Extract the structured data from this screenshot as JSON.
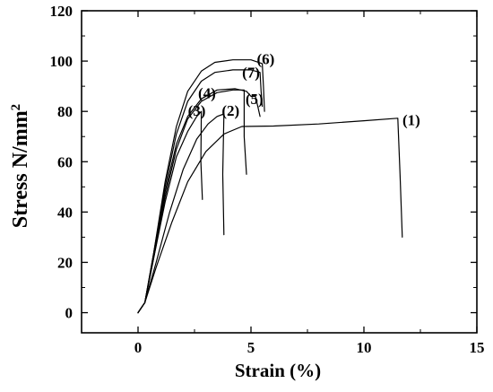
{
  "chart_data": {
    "type": "line",
    "xlabel": "Strain (%)",
    "ylabel_main": "Stress N/mm",
    "ylabel_sup": "2",
    "xlim": [
      -2.5,
      15
    ],
    "ylim": [
      -8,
      120
    ],
    "xticks": [
      0,
      5,
      10,
      15
    ],
    "yticks": [
      0,
      20,
      40,
      60,
      80,
      100,
      120
    ],
    "grid": false,
    "legend": "none",
    "line_color": "#000000",
    "series": [
      {
        "name": "(1)",
        "points": [
          [
            0,
            0
          ],
          [
            0.3,
            4
          ],
          [
            0.8,
            18
          ],
          [
            1.5,
            36
          ],
          [
            2.2,
            52
          ],
          [
            3.0,
            64
          ],
          [
            3.8,
            71
          ],
          [
            4.6,
            74
          ],
          [
            6,
            74.2
          ],
          [
            8,
            75
          ],
          [
            10,
            76.3
          ],
          [
            11.5,
            77.3
          ],
          [
            11.6,
            55
          ],
          [
            11.7,
            30
          ]
        ]
      },
      {
        "name": "(2)",
        "points": [
          [
            0,
            0
          ],
          [
            0.3,
            4
          ],
          [
            0.8,
            20
          ],
          [
            1.4,
            40
          ],
          [
            2.0,
            57
          ],
          [
            2.6,
            69
          ],
          [
            3.1,
            75
          ],
          [
            3.5,
            78
          ],
          [
            3.8,
            79
          ],
          [
            3.75,
            55
          ],
          [
            3.8,
            31
          ]
        ]
      },
      {
        "name": "(3)",
        "points": [
          [
            0,
            0
          ],
          [
            0.3,
            4
          ],
          [
            0.7,
            22
          ],
          [
            1.2,
            44
          ],
          [
            1.7,
            62
          ],
          [
            2.2,
            72
          ],
          [
            2.6,
            78
          ],
          [
            2.8,
            80
          ],
          [
            2.78,
            60
          ],
          [
            2.85,
            45
          ]
        ]
      },
      {
        "name": "(4)",
        "points": [
          [
            0,
            0
          ],
          [
            0.3,
            4
          ],
          [
            0.7,
            22
          ],
          [
            1.2,
            46
          ],
          [
            1.7,
            65
          ],
          [
            2.2,
            77
          ],
          [
            2.8,
            84
          ],
          [
            3.5,
            87.5
          ],
          [
            4.2,
            88.5
          ],
          [
            4.7,
            88.5
          ],
          [
            4.7,
            70
          ],
          [
            4.8,
            55
          ]
        ]
      },
      {
        "name": "(5)",
        "points": [
          [
            0,
            0
          ],
          [
            0.3,
            4
          ],
          [
            0.7,
            23
          ],
          [
            1.2,
            48
          ],
          [
            1.7,
            67
          ],
          [
            2.2,
            78
          ],
          [
            2.8,
            85
          ],
          [
            3.5,
            88.5
          ],
          [
            4.3,
            89
          ],
          [
            4.8,
            88
          ],
          [
            5.0,
            86
          ],
          [
            5.2,
            86
          ],
          [
            5.3,
            82
          ],
          [
            5.4,
            78
          ]
        ]
      },
      {
        "name": "(6)",
        "points": [
          [
            0,
            0
          ],
          [
            0.3,
            4
          ],
          [
            0.7,
            24
          ],
          [
            1.2,
            52
          ],
          [
            1.7,
            74
          ],
          [
            2.2,
            88
          ],
          [
            2.8,
            96
          ],
          [
            3.4,
            99.5
          ],
          [
            4.2,
            100.5
          ],
          [
            5.0,
            100.5
          ],
          [
            5.5,
            99
          ],
          [
            5.55,
            90
          ],
          [
            5.6,
            80
          ]
        ]
      },
      {
        "name": "(7)",
        "points": [
          [
            0,
            0
          ],
          [
            0.3,
            4
          ],
          [
            0.7,
            24
          ],
          [
            1.2,
            50
          ],
          [
            1.7,
            71
          ],
          [
            2.2,
            84
          ],
          [
            2.8,
            92
          ],
          [
            3.4,
            95.5
          ],
          [
            4.2,
            96.5
          ],
          [
            5.0,
            96.5
          ],
          [
            5.4,
            95.5
          ],
          [
            5.45,
            88
          ],
          [
            5.5,
            82
          ]
        ]
      }
    ],
    "annotations": [
      {
        "text": "(1)",
        "x": 12.1,
        "y": 76.6
      },
      {
        "text": "(2)",
        "x": 4.1,
        "y": 80.4
      },
      {
        "text": "(3)",
        "x": 2.6,
        "y": 80.4
      },
      {
        "text": "(4)",
        "x": 3.05,
        "y": 87.4
      },
      {
        "text": "(5)",
        "x": 5.15,
        "y": 85.0
      },
      {
        "text": "(6)",
        "x": 5.65,
        "y": 100.9
      },
      {
        "text": "(7)",
        "x": 5.0,
        "y": 95.6
      }
    ]
  }
}
